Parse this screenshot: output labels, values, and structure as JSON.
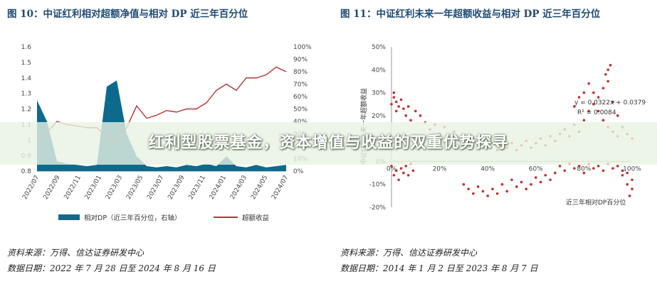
{
  "banner": {
    "title": "红利型股票基金，资本增值与收益的双重优势探寻"
  },
  "figures": [
    {
      "title": "图 10：中证红利相对超额净值与相对 DP 近三年百分位",
      "source": "资料来源：万得、信达证券研发中心",
      "date_range": "数据日期：2022 年 7 月 28 日至 2024 年 8 月 16 日"
    },
    {
      "title": "图 11：中证红利未来一年超额收益与相对 DP 近三年百分位",
      "source": "资料来源：万得、信达证券研发中心",
      "date_range": "数据日期：2014 年 1 月 2 日至 2023 年 8 月 7 日"
    }
  ],
  "colors": {
    "area": "#0e6a8c",
    "line": "#b53333",
    "scatter": "#c0302e",
    "title": "#1e4a73"
  },
  "chart_data": [
    {
      "type": "line",
      "x_ticks": [
        "2022/07",
        "2022/09",
        "2022/11",
        "2023/01",
        "2023/03",
        "2023/05",
        "2023/07",
        "2023/09",
        "2023/11",
        "2024/01",
        "2024/03",
        "2024/05",
        "2024/07"
      ],
      "yleft_ticks": [
        "1.6",
        "1.5",
        "1.4",
        "1.3",
        "1.2",
        "1.1",
        "1",
        "0.9",
        "0.8"
      ],
      "yright_ticks": [
        "100%",
        "90%",
        "80%",
        "70%",
        "60%",
        "50%",
        "40%",
        "30%",
        "20%",
        "10%",
        "0%"
      ],
      "ylim_left": [
        0.8,
        1.6
      ],
      "ylim_right": [
        0,
        100
      ],
      "series": [
        {
          "name": "相对DP（近三年百分位，右轴）",
          "type": "area",
          "axis": "right",
          "x": [
            "2022/07",
            "2022/08",
            "2022/09",
            "2022/10",
            "2022/11",
            "2022/12",
            "2023/01",
            "2023/02",
            "2023/03",
            "2023/04",
            "2023/05",
            "2023/06",
            "2023/07",
            "2023/08",
            "2023/09",
            "2023/10",
            "2023/11",
            "2023/12",
            "2024/01",
            "2024/02",
            "2024/03",
            "2024/04",
            "2024/05",
            "2024/06",
            "2024/07",
            "2024/08"
          ],
          "values": [
            57,
            40,
            8,
            6,
            5,
            4,
            5,
            68,
            73,
            30,
            12,
            4,
            3,
            4,
            3,
            5,
            4,
            6,
            4,
            12,
            4,
            3,
            5,
            3,
            4,
            5
          ]
        },
        {
          "name": "超额收益",
          "type": "line",
          "axis": "left",
          "x": [
            "2022/07",
            "2022/08",
            "2022/09",
            "2022/10",
            "2022/11",
            "2022/12",
            "2023/01",
            "2023/02",
            "2023/03",
            "2023/04",
            "2023/05",
            "2023/06",
            "2023/07",
            "2023/08",
            "2023/09",
            "2023/10",
            "2023/11",
            "2023/12",
            "2024/01",
            "2024/02",
            "2024/03",
            "2024/04",
            "2024/05",
            "2024/06",
            "2024/07",
            "2024/08"
          ],
          "values": [
            1.0,
            1.05,
            1.12,
            1.1,
            1.09,
            1.08,
            1.08,
            1.02,
            1.0,
            1.08,
            1.22,
            1.14,
            1.16,
            1.19,
            1.18,
            1.2,
            1.2,
            1.24,
            1.32,
            1.36,
            1.32,
            1.4,
            1.4,
            1.42,
            1.47,
            1.44
          ]
        }
      ],
      "legend": "bottom"
    },
    {
      "type": "scatter",
      "ylabel": "中证红利未来一年超额收益",
      "x_ticks": [
        "0%",
        "20%",
        "40%",
        "60%",
        "80%",
        "100%"
      ],
      "y_ticks": [
        "50%",
        "40%",
        "30%",
        "20%",
        "10%",
        "0%",
        "-10%",
        "-20%"
      ],
      "xlim": [
        0,
        100
      ],
      "ylim": [
        -20,
        50
      ],
      "annotations": [
        "y = 0.0322x + 0.0379",
        "R² = 0.0084"
      ],
      "xlabel": "近三年相对DP百分位",
      "points": [
        [
          0,
          25
        ],
        [
          1,
          28
        ],
        [
          1,
          30
        ],
        [
          2,
          22
        ],
        [
          2,
          26
        ],
        [
          3,
          24
        ],
        [
          4,
          27
        ],
        [
          5,
          23
        ],
        [
          6,
          20
        ],
        [
          7,
          24
        ],
        [
          0,
          -2
        ],
        [
          1,
          -6
        ],
        [
          2,
          -4
        ],
        [
          3,
          -8
        ],
        [
          4,
          -3
        ],
        [
          5,
          -5
        ],
        [
          6,
          -2
        ],
        [
          7,
          -6
        ],
        [
          8,
          -1
        ],
        [
          9,
          -4
        ],
        [
          8,
          18
        ],
        [
          10,
          22
        ],
        [
          12,
          20
        ],
        [
          14,
          17
        ],
        [
          16,
          14
        ],
        [
          18,
          16
        ],
        [
          20,
          12
        ],
        [
          22,
          15
        ],
        [
          24,
          10
        ],
        [
          26,
          13
        ],
        [
          28,
          9
        ],
        [
          30,
          11
        ],
        [
          32,
          8
        ],
        [
          34,
          10
        ],
        [
          36,
          7
        ],
        [
          38,
          9
        ],
        [
          40,
          6
        ],
        [
          42,
          8
        ],
        [
          44,
          5
        ],
        [
          46,
          7
        ],
        [
          30,
          -10
        ],
        [
          32,
          -12
        ],
        [
          34,
          -14
        ],
        [
          36,
          -11
        ],
        [
          38,
          -13
        ],
        [
          40,
          -15
        ],
        [
          42,
          -12
        ],
        [
          44,
          -14
        ],
        [
          46,
          -10
        ],
        [
          48,
          -13
        ],
        [
          50,
          -8
        ],
        [
          52,
          -11
        ],
        [
          54,
          -9
        ],
        [
          56,
          -12
        ],
        [
          58,
          -10
        ],
        [
          60,
          -7
        ],
        [
          62,
          -9
        ],
        [
          64,
          -6
        ],
        [
          66,
          -8
        ],
        [
          68,
          -5
        ],
        [
          48,
          6
        ],
        [
          50,
          8
        ],
        [
          52,
          5
        ],
        [
          54,
          7
        ],
        [
          56,
          9
        ],
        [
          58,
          6
        ],
        [
          60,
          8
        ],
        [
          62,
          10
        ],
        [
          64,
          7
        ],
        [
          66,
          11
        ],
        [
          68,
          9
        ],
        [
          70,
          12
        ],
        [
          72,
          14
        ],
        [
          74,
          11
        ],
        [
          76,
          16
        ],
        [
          78,
          13
        ],
        [
          80,
          18
        ],
        [
          82,
          22
        ],
        [
          84,
          25
        ],
        [
          86,
          28
        ],
        [
          70,
          -2
        ],
        [
          72,
          -4
        ],
        [
          74,
          -1
        ],
        [
          76,
          -3
        ],
        [
          78,
          -2
        ],
        [
          80,
          -5
        ],
        [
          82,
          -1
        ],
        [
          84,
          -3
        ],
        [
          86,
          -2
        ],
        [
          88,
          -4
        ],
        [
          88,
          32
        ],
        [
          89,
          38
        ],
        [
          90,
          40
        ],
        [
          91,
          42
        ],
        [
          90,
          35
        ],
        [
          92,
          26
        ],
        [
          94,
          20
        ],
        [
          96,
          15
        ],
        [
          98,
          12
        ],
        [
          100,
          10
        ],
        [
          90,
          -1
        ],
        [
          92,
          -3
        ],
        [
          94,
          -2
        ],
        [
          96,
          -4
        ],
        [
          98,
          -5
        ],
        [
          100,
          -8
        ],
        [
          100,
          -12
        ],
        [
          99,
          -15
        ],
        [
          98,
          -10
        ],
        [
          96,
          -6
        ],
        [
          76,
          24
        ],
        [
          78,
          28
        ],
        [
          80,
          30
        ],
        [
          82,
          34
        ],
        [
          84,
          30
        ],
        [
          86,
          22
        ],
        [
          88,
          18
        ],
        [
          90,
          15
        ],
        [
          92,
          13
        ],
        [
          94,
          11
        ]
      ]
    }
  ]
}
